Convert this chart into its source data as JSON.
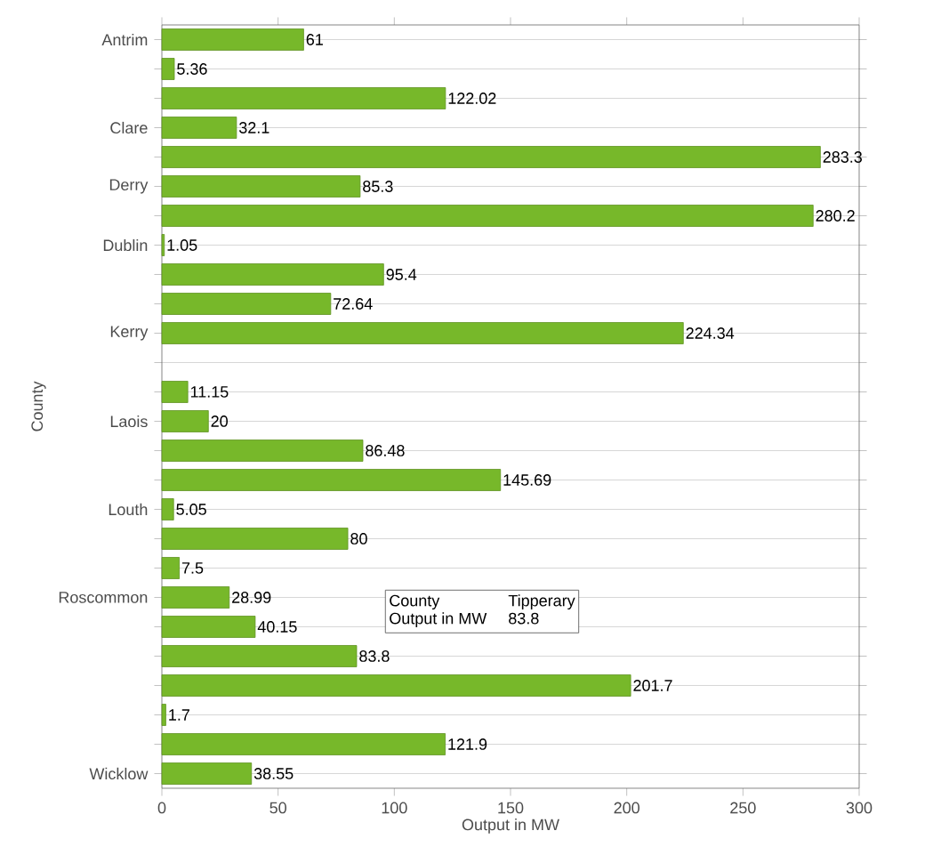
{
  "chart_data": {
    "type": "bar",
    "orientation": "horizontal",
    "xlabel": "Output in MW",
    "ylabel": "County",
    "categories": [
      "Antrim",
      null,
      null,
      "Clare",
      null,
      "Derry",
      null,
      "Dublin",
      null,
      null,
      "Kerry",
      null,
      null,
      "Laois",
      null,
      null,
      "Louth",
      null,
      null,
      "Roscommon",
      null,
      null,
      null,
      null,
      null,
      "Wicklow"
    ],
    "values": [
      61,
      5.36,
      122.02,
      32.1,
      283.3,
      85.3,
      280.2,
      1.05,
      95.4,
      72.64,
      224.34,
      null,
      11.15,
      20,
      86.48,
      145.69,
      5.05,
      80,
      7.5,
      28.99,
      40.15,
      83.8,
      201.7,
      1.7,
      121.9,
      38.55
    ],
    "color": "#77b82a",
    "xlim": [
      0,
      300
    ],
    "xticks": [
      0,
      50,
      100,
      150,
      200,
      250,
      300
    ],
    "grid": "y",
    "data_labels": true,
    "annotations": [
      "County",
      "Tipperary",
      "Output in MW",
      "83.8"
    ]
  }
}
